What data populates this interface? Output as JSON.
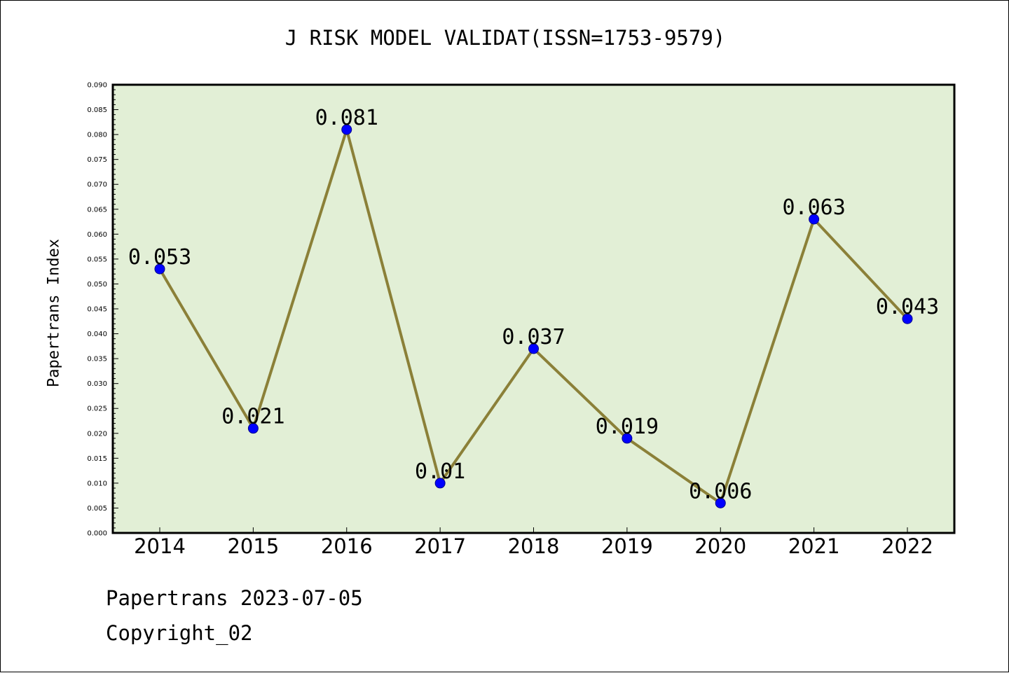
{
  "chart_data": {
    "type": "line",
    "title": "J RISK MODEL VALIDAT(ISSN=1753-9579)",
    "ylabel": "Papertrans Index",
    "xlabel": "",
    "x": [
      "2014",
      "2015",
      "2016",
      "2017",
      "2018",
      "2019",
      "2020",
      "2021",
      "2022"
    ],
    "series": [
      {
        "values": [
          0.053,
          0.021,
          0.081,
          0.01,
          0.037,
          0.019,
          0.006,
          0.063,
          0.043
        ],
        "data_labels": [
          "0.053",
          "0.021",
          "0.081",
          "0.01",
          "0.037",
          "0.019",
          "0.006",
          "0.063",
          "0.043"
        ]
      }
    ],
    "ylim": [
      0.0,
      0.09
    ],
    "yticks": [
      "0.000",
      "0.005",
      "0.010",
      "0.015",
      "0.020",
      "0.025",
      "0.030",
      "0.035",
      "0.040",
      "0.045",
      "0.050",
      "0.055",
      "0.060",
      "0.065",
      "0.070",
      "0.075",
      "0.080",
      "0.085",
      "0.090"
    ],
    "grid": false,
    "colors": {
      "plot_background": "#e2efd6",
      "line": "#8b8038",
      "marker": "#0000ff"
    }
  },
  "footer": {
    "line1": "Papertrans 2023-07-05",
    "line2": "Copyright_02"
  }
}
